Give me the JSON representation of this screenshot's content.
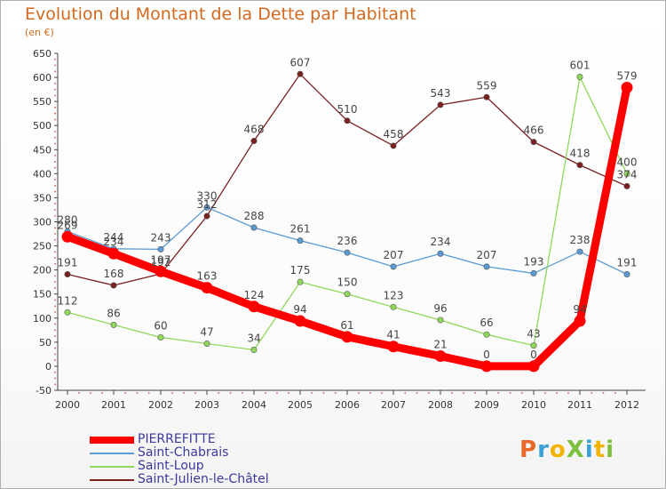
{
  "title": "Evolution du Montant de la Dette par Habitant",
  "subtitle": "(en €)",
  "logo_text": "ProXiti",
  "chart_data": {
    "type": "line",
    "title": "Evolution du Montant de la Dette par Habitant",
    "ylabel": "(en €)",
    "ylim": [
      -50,
      650
    ],
    "yticks": [
      -50,
      0,
      50,
      100,
      150,
      200,
      250,
      300,
      350,
      400,
      450,
      500,
      550,
      600,
      650
    ],
    "categories": [
      "2000",
      "2001",
      "2002",
      "2003",
      "2004",
      "2005",
      "2006",
      "2007",
      "2008",
      "2009",
      "2010",
      "2011",
      "2012"
    ],
    "grid": false,
    "legend_position": "bottom-left",
    "series": [
      {
        "name": "PIERREFITTE",
        "color": "#ff0000",
        "values": [
          269,
          234,
          197,
          163,
          124,
          94,
          61,
          41,
          21,
          0,
          0,
          94,
          579
        ]
      },
      {
        "name": "Saint-Chabrais",
        "color": "#5b9bd5",
        "values": [
          280,
          244,
          243,
          330,
          288,
          261,
          236,
          207,
          234,
          207,
          193,
          238,
          191
        ]
      },
      {
        "name": "Saint-Loup",
        "color": "#8fd85a",
        "values": [
          112,
          86,
          60,
          47,
          34,
          175,
          150,
          123,
          96,
          66,
          43,
          601,
          400
        ]
      },
      {
        "name": "Saint-Julien-le-Châtel",
        "color": "#7b1f1f",
        "values": [
          191,
          168,
          192,
          312,
          468,
          607,
          510,
          458,
          543,
          559,
          466,
          418,
          374
        ]
      }
    ]
  }
}
